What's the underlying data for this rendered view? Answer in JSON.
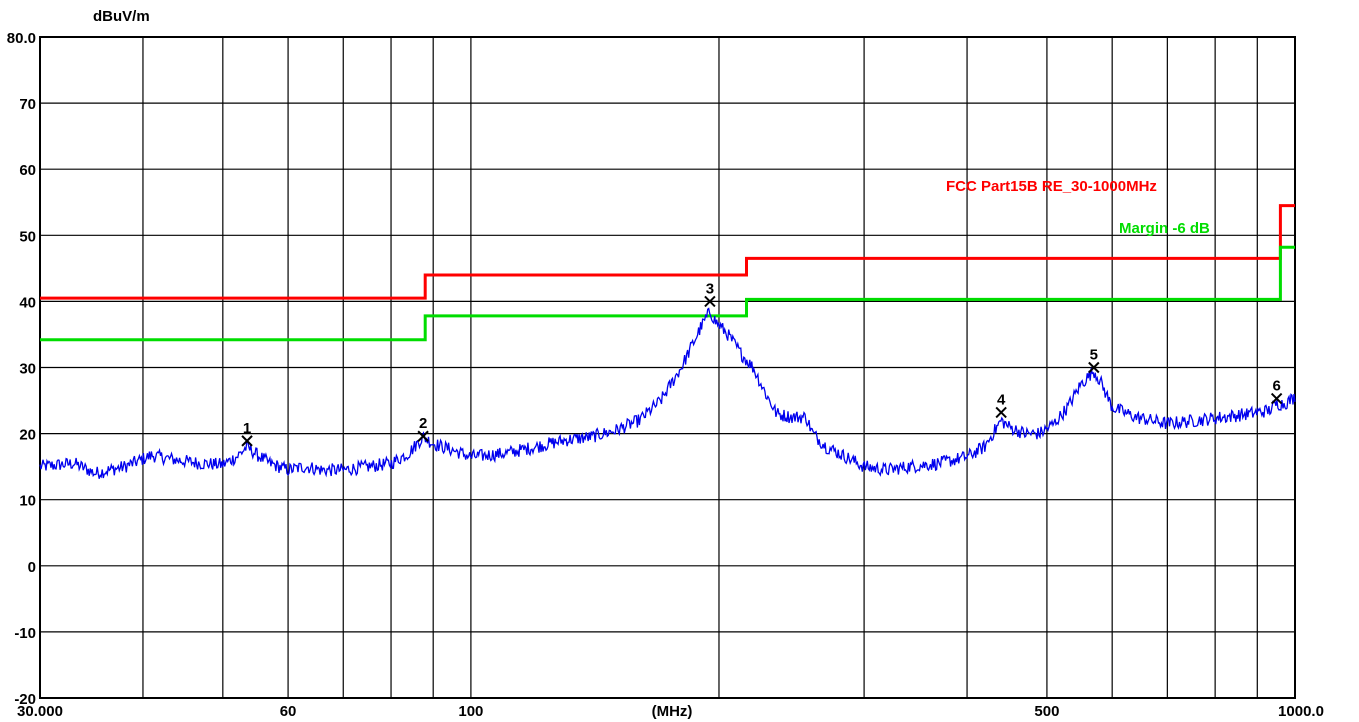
{
  "chart_data": {
    "type": "line",
    "ylabel": "dBuV/m",
    "xlabel": "(MHz)",
    "x_scale": "log",
    "xlim": [
      30,
      1000
    ],
    "ylim": [
      -20,
      80
    ],
    "y_ticks": [
      {
        "value": 80,
        "label": "80.0"
      },
      {
        "value": 70,
        "label": "70"
      },
      {
        "value": 60,
        "label": "60"
      },
      {
        "value": 50,
        "label": "50"
      },
      {
        "value": 40,
        "label": "40"
      },
      {
        "value": 30,
        "label": "30"
      },
      {
        "value": 20,
        "label": "20"
      },
      {
        "value": 10,
        "label": "10"
      },
      {
        "value": 0,
        "label": "0"
      },
      {
        "value": -10,
        "label": "-10"
      },
      {
        "value": -20,
        "label": "-20"
      }
    ],
    "x_ticks": [
      {
        "value": 30,
        "label": "30.000"
      },
      {
        "value": 60,
        "label": "60"
      },
      {
        "value": 100,
        "label": "100"
      },
      {
        "value": 500,
        "label": "500"
      },
      {
        "value": 1000,
        "label": "1000.0"
      }
    ],
    "x_gridlines": [
      30,
      40,
      50,
      60,
      70,
      80,
      90,
      100,
      200,
      300,
      400,
      500,
      600,
      700,
      800,
      900,
      1000
    ],
    "grid": true,
    "legend_position": "upper-right",
    "series": [
      {
        "name": "FCC Part15B RE_30-1000MHz",
        "color": "#ff0000",
        "step": true,
        "points": [
          [
            30,
            40.5
          ],
          [
            88,
            40.5
          ],
          [
            88,
            44
          ],
          [
            216,
            44
          ],
          [
            216,
            46.5
          ],
          [
            960,
            46.5
          ],
          [
            960,
            54.5
          ],
          [
            1000,
            54.5
          ]
        ]
      },
      {
        "name": "Margin -6 dB",
        "color": "#00dd00",
        "step": true,
        "points": [
          [
            30,
            34.2
          ],
          [
            88,
            34.2
          ],
          [
            88,
            37.8
          ],
          [
            216,
            37.8
          ],
          [
            216,
            40.3
          ],
          [
            960,
            40.3
          ],
          [
            960,
            48.2
          ],
          [
            1000,
            48.2
          ]
        ]
      },
      {
        "name": "",
        "color": "#0000ee",
        "noisy": true,
        "points": [
          [
            30,
            15
          ],
          [
            33,
            15.5
          ],
          [
            35,
            14
          ],
          [
            38,
            15
          ],
          [
            41,
            16.7
          ],
          [
            44,
            16
          ],
          [
            47,
            15.5
          ],
          [
            50,
            15.3
          ],
          [
            52,
            16.5
          ],
          [
            53.5,
            18
          ],
          [
            55,
            16.8
          ],
          [
            57,
            15.5
          ],
          [
            60,
            14.5
          ],
          [
            63,
            15
          ],
          [
            66,
            14.5
          ],
          [
            70,
            14.5
          ],
          [
            75,
            15
          ],
          [
            80,
            15.5
          ],
          [
            84,
            17
          ],
          [
            87.5,
            19.5
          ],
          [
            90,
            18.5
          ],
          [
            95,
            17.5
          ],
          [
            100,
            16.5
          ],
          [
            110,
            17
          ],
          [
            120,
            18
          ],
          [
            130,
            19
          ],
          [
            140,
            19.5
          ],
          [
            150,
            20.5
          ],
          [
            160,
            22
          ],
          [
            170,
            25
          ],
          [
            180,
            30
          ],
          [
            190,
            36
          ],
          [
            195,
            38.5
          ],
          [
            198,
            37
          ],
          [
            205,
            35
          ],
          [
            213,
            32
          ],
          [
            220,
            30
          ],
          [
            228,
            26
          ],
          [
            235,
            23
          ],
          [
            245,
            22.5
          ],
          [
            255,
            22.5
          ],
          [
            260,
            20
          ],
          [
            270,
            18
          ],
          [
            285,
            16.5
          ],
          [
            300,
            15
          ],
          [
            320,
            14.5
          ],
          [
            340,
            15
          ],
          [
            370,
            15.5
          ],
          [
            400,
            16.5
          ],
          [
            420,
            18
          ],
          [
            440,
            22
          ],
          [
            450,
            21
          ],
          [
            470,
            20
          ],
          [
            490,
            20
          ],
          [
            510,
            21.5
          ],
          [
            530,
            24
          ],
          [
            550,
            27.5
          ],
          [
            570,
            29.5
          ],
          [
            580,
            28
          ],
          [
            600,
            24
          ],
          [
            640,
            22.5
          ],
          [
            700,
            21.5
          ],
          [
            760,
            22
          ],
          [
            820,
            22.5
          ],
          [
            880,
            23
          ],
          [
            930,
            23.5
          ],
          [
            950,
            24.5
          ],
          [
            970,
            24.5
          ],
          [
            1000,
            25.5
          ]
        ]
      }
    ],
    "markers": [
      {
        "label": "1",
        "x": 53.5,
        "y": 18.9
      },
      {
        "label": "2",
        "x": 87.5,
        "y": 19.6
      },
      {
        "label": "3",
        "x": 195,
        "y": 40
      },
      {
        "label": "4",
        "x": 440,
        "y": 23.2
      },
      {
        "label": "5",
        "x": 570,
        "y": 30
      },
      {
        "label": "6",
        "x": 950,
        "y": 25.3
      }
    ]
  }
}
